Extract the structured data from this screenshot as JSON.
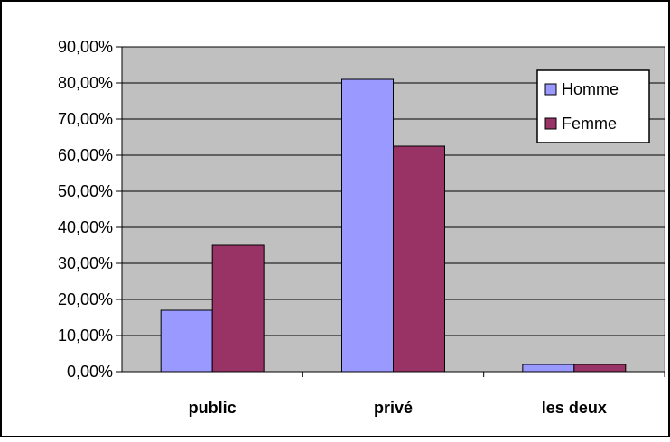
{
  "chart_data": {
    "type": "bar",
    "title": "",
    "xlabel": "",
    "ylabel": "",
    "categories": [
      "public",
      "privé",
      "les deux"
    ],
    "series": [
      {
        "name": "Homme",
        "values": [
          17,
          81,
          2
        ],
        "color": "#9999ff"
      },
      {
        "name": "Femme",
        "values": [
          35,
          62.5,
          2
        ],
        "color": "#993366"
      }
    ],
    "ylim": [
      0,
      90
    ],
    "yticks": [
      0,
      10,
      20,
      30,
      40,
      50,
      60,
      70,
      80,
      90
    ],
    "ytick_labels": [
      "0,00%",
      "10,00%",
      "20,00%",
      "30,00%",
      "40,00%",
      "50,00%",
      "60,00%",
      "70,00%",
      "80,00%",
      "90,00%"
    ],
    "grid": true,
    "legend_position": "top-right",
    "plot_background": "#c0c0c0"
  }
}
